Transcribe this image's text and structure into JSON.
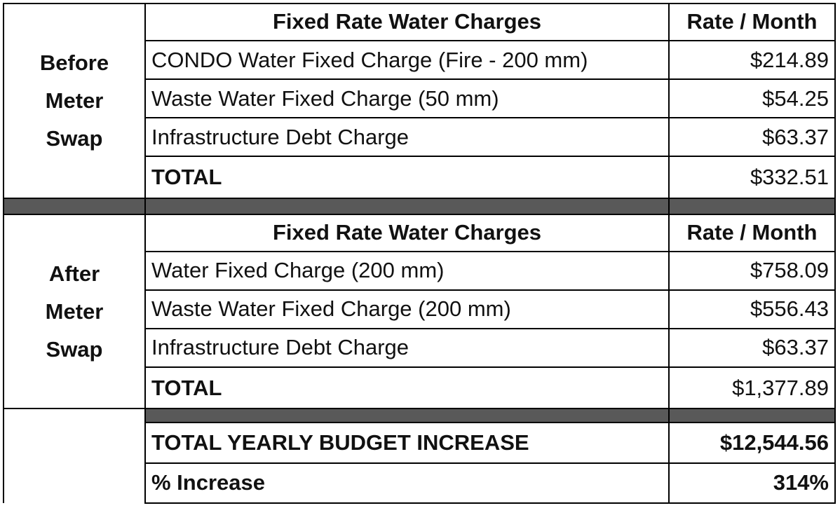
{
  "before": {
    "label_lines": [
      "Before",
      "Meter",
      "Swap"
    ],
    "header": {
      "charges": "Fixed Rate Water Charges",
      "rate": "Rate / Month"
    },
    "items": [
      {
        "desc": "CONDO Water Fixed Charge (Fire - 200 mm)",
        "rate": "$214.89"
      },
      {
        "desc": "Waste Water Fixed Charge (50 mm)",
        "rate": "$54.25"
      },
      {
        "desc": "Infrastructure Debt Charge",
        "rate": "$63.37"
      }
    ],
    "total": {
      "label": "TOTAL",
      "rate": "$332.51"
    }
  },
  "after": {
    "label_lines": [
      "After",
      "Meter",
      "Swap"
    ],
    "header": {
      "charges": "Fixed Rate Water Charges",
      "rate": "Rate / Month"
    },
    "items": [
      {
        "desc": "Water Fixed Charge (200 mm)",
        "rate": "$758.09"
      },
      {
        "desc": "Waste Water Fixed Charge (200 mm)",
        "rate": "$556.43"
      },
      {
        "desc": "Infrastructure Debt Charge",
        "rate": "$63.37"
      }
    ],
    "total": {
      "label": "TOTAL",
      "rate": "$1,377.89"
    }
  },
  "summary": {
    "yearly_label": "TOTAL YEARLY BUDGET INCREASE",
    "yearly_value": "$12,544.56",
    "percent_label": "% Increase",
    "percent_value": "314%"
  },
  "colors": {
    "separator": "#595959",
    "border": "#000000",
    "text": "#111111"
  }
}
